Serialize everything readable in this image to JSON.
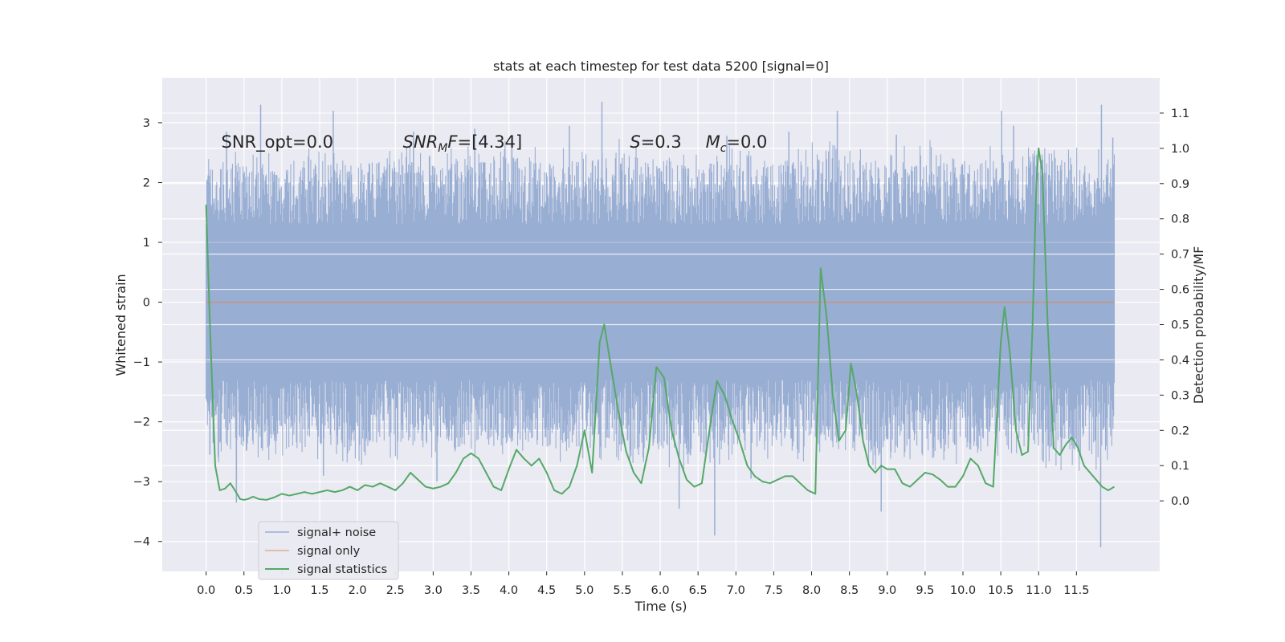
{
  "chart_data": {
    "type": "line",
    "title": "stats at each timestep for test data 5200 [signal=0]",
    "xlabel": "Time (s)",
    "ylabel_left": "Whitened strain",
    "ylabel_right": "Detection probability/MF",
    "xlim": [
      -0.58,
      12.6
    ],
    "ylim_left": [
      -4.5,
      3.75
    ],
    "ylim_right": [
      -0.2,
      1.2
    ],
    "x_ticks": [
      0.0,
      0.5,
      1.0,
      1.5,
      2.0,
      2.5,
      3.0,
      3.5,
      4.0,
      4.5,
      5.0,
      5.5,
      6.0,
      6.5,
      7.0,
      7.5,
      8.0,
      8.5,
      9.0,
      9.5,
      10.0,
      10.5,
      11.0,
      11.5
    ],
    "x_tick_labels": [
      "0.0",
      "0.5",
      "1.0",
      "1.5",
      "2.0",
      "2.5",
      "3.0",
      "3.5",
      "4.0",
      "4.5",
      "5.0",
      "5.5",
      "6.0",
      "6.5",
      "7.0",
      "7.5",
      "8.0",
      "8.5",
      "9.0",
      "9.5",
      "10.0",
      "10.5",
      "11.0",
      "11.5"
    ],
    "y_left_ticks": [
      3,
      2,
      1,
      0,
      -1,
      -2,
      -3,
      -4
    ],
    "y_left_tick_labels": [
      "3",
      "2",
      "1",
      "0",
      "−1",
      "−2",
      "−3",
      "−4"
    ],
    "y_right_ticks": [
      1.1,
      1.0,
      0.9,
      0.8,
      0.7,
      0.6,
      0.5,
      0.4,
      0.3,
      0.2,
      0.1,
      0.0
    ],
    "y_right_tick_labels": [
      "1.1",
      "1.0",
      "0.9",
      "0.8",
      "0.7",
      "0.6",
      "0.5",
      "0.4",
      "0.3",
      "0.2",
      "0.1",
      "0.0"
    ],
    "grid": true,
    "legend_position": "lower-left",
    "annotations": [
      {
        "text": "SNR_opt=0.0",
        "x": 0.2,
        "y": 2.68
      },
      {
        "text": "SNR_MF=[4.34]",
        "x": 2.6,
        "y": 2.68
      },
      {
        "text": "S=0.3",
        "x": 5.6,
        "y": 2.68
      },
      {
        "text": "M_c=0.0",
        "x": 6.6,
        "y": 2.68
      }
    ],
    "annotation_parts": [
      [
        {
          "t": "SNR_opt=0.0"
        }
      ],
      [
        {
          "t": "SNR",
          "i": 1
        },
        {
          "t": "M",
          "i": 1,
          "sub": 1
        },
        {
          "t": "F",
          "i": 1
        },
        {
          "t": "=[4.34]"
        }
      ],
      [
        {
          "t": "S",
          "i": 1
        },
        {
          "t": "=0.3"
        }
      ],
      [
        {
          "t": "M",
          "i": 1
        },
        {
          "t": "c",
          "i": 1,
          "sub": 1
        },
        {
          "t": "=0.0"
        }
      ]
    ],
    "series": [
      {
        "name": "signal+ noise",
        "color": "#99aed3",
        "axis": "left",
        "x_range": [
          0.0,
          12.0
        ],
        "envelope_x": [
          0.0,
          0.5,
          1.0,
          1.5,
          2.0,
          2.5,
          3.0,
          3.5,
          4.0,
          4.5,
          5.0,
          5.5,
          6.0,
          6.5,
          7.0,
          7.5,
          8.0,
          8.5,
          9.0,
          9.5,
          10.0,
          10.5,
          11.0,
          11.5,
          12.0
        ],
        "envelope_upper": [
          2.3,
          2.4,
          2.3,
          2.4,
          2.3,
          2.4,
          2.3,
          2.4,
          2.5,
          2.3,
          2.4,
          2.5,
          2.4,
          2.3,
          2.4,
          2.3,
          2.5,
          2.4,
          2.3,
          2.5,
          2.4,
          2.4,
          2.5,
          2.4,
          2.3
        ],
        "envelope_lower": [
          -2.4,
          -2.5,
          -2.5,
          -2.4,
          -2.5,
          -2.4,
          -2.5,
          -2.4,
          -2.5,
          -2.5,
          -2.4,
          -2.5,
          -2.5,
          -2.6,
          -2.4,
          -2.5,
          -2.4,
          -2.5,
          -2.6,
          -2.5,
          -2.5,
          -2.4,
          -2.5,
          -2.6,
          -2.5
        ],
        "peaks": [
          {
            "x": 0.02,
            "y": 1.65
          },
          {
            "x": 0.27,
            "y": 2.85
          },
          {
            "x": 0.72,
            "y": 3.3
          },
          {
            "x": 1.68,
            "y": 3.2
          },
          {
            "x": 2.74,
            "y": 2.85
          },
          {
            "x": 3.55,
            "y": 2.9
          },
          {
            "x": 4.04,
            "y": 2.8
          },
          {
            "x": 4.8,
            "y": 2.95
          },
          {
            "x": 5.23,
            "y": 3.35
          },
          {
            "x": 6.88,
            "y": 2.78
          },
          {
            "x": 7.7,
            "y": 2.85
          },
          {
            "x": 8.34,
            "y": 3.2
          },
          {
            "x": 9.12,
            "y": 2.8
          },
          {
            "x": 10.51,
            "y": 3.2
          },
          {
            "x": 10.67,
            "y": 2.95
          },
          {
            "x": 11.83,
            "y": 3.3
          },
          {
            "x": 11.98,
            "y": 2.75
          }
        ],
        "troughs": [
          {
            "x": 0.05,
            "y": -2.55
          },
          {
            "x": 0.4,
            "y": -3.35
          },
          {
            "x": 1.55,
            "y": -2.9
          },
          {
            "x": 3.05,
            "y": -3.0
          },
          {
            "x": 6.25,
            "y": -3.45
          },
          {
            "x": 6.72,
            "y": -3.9
          },
          {
            "x": 7.2,
            "y": -2.95
          },
          {
            "x": 8.92,
            "y": -3.5
          },
          {
            "x": 11.82,
            "y": -4.1
          },
          {
            "x": 11.97,
            "y": -1.72
          }
        ]
      },
      {
        "name": "signal only",
        "color": "#dd8452",
        "axis": "left",
        "x": [
          0.0,
          12.0
        ],
        "y": [
          0.0,
          0.0
        ]
      },
      {
        "name": "signal statistics",
        "color": "#55a868",
        "axis": "right",
        "x": [
          0.0,
          0.05,
          0.12,
          0.18,
          0.25,
          0.32,
          0.38,
          0.45,
          0.5,
          0.55,
          0.62,
          0.7,
          0.8,
          0.9,
          1.0,
          1.1,
          1.2,
          1.3,
          1.4,
          1.5,
          1.6,
          1.7,
          1.8,
          1.9,
          2.0,
          2.1,
          2.2,
          2.3,
          2.4,
          2.5,
          2.6,
          2.7,
          2.8,
          2.9,
          3.0,
          3.1,
          3.2,
          3.3,
          3.4,
          3.5,
          3.6,
          3.7,
          3.8,
          3.9,
          4.0,
          4.1,
          4.2,
          4.3,
          4.4,
          4.5,
          4.6,
          4.7,
          4.8,
          4.9,
          5.0,
          5.1,
          5.2,
          5.26,
          5.35,
          5.45,
          5.55,
          5.65,
          5.75,
          5.85,
          5.95,
          6.05,
          6.15,
          6.25,
          6.35,
          6.45,
          6.55,
          6.65,
          6.75,
          6.85,
          6.95,
          7.05,
          7.15,
          7.25,
          7.35,
          7.45,
          7.55,
          7.65,
          7.75,
          7.85,
          7.95,
          8.05,
          8.12,
          8.2,
          8.28,
          8.36,
          8.45,
          8.52,
          8.6,
          8.68,
          8.76,
          8.84,
          8.92,
          9.0,
          9.1,
          9.2,
          9.3,
          9.4,
          9.5,
          9.6,
          9.7,
          9.8,
          9.9,
          10.0,
          10.1,
          10.2,
          10.3,
          10.4,
          10.5,
          10.55,
          10.62,
          10.7,
          10.78,
          10.86,
          10.92,
          10.97,
          11.0,
          11.05,
          11.12,
          11.2,
          11.28,
          11.36,
          11.44,
          11.52,
          11.6,
          11.68,
          11.76,
          11.84,
          11.92,
          12.0
        ],
        "y": [
          0.84,
          0.5,
          0.1,
          0.03,
          0.035,
          0.05,
          0.03,
          0.005,
          0.003,
          0.005,
          0.012,
          0.005,
          0.003,
          0.01,
          0.02,
          0.015,
          0.02,
          0.025,
          0.02,
          0.025,
          0.03,
          0.025,
          0.03,
          0.04,
          0.03,
          0.045,
          0.04,
          0.05,
          0.04,
          0.03,
          0.05,
          0.08,
          0.06,
          0.04,
          0.035,
          0.04,
          0.05,
          0.08,
          0.12,
          0.135,
          0.12,
          0.08,
          0.04,
          0.03,
          0.09,
          0.145,
          0.12,
          0.1,
          0.12,
          0.08,
          0.03,
          0.02,
          0.04,
          0.1,
          0.2,
          0.08,
          0.45,
          0.5,
          0.38,
          0.25,
          0.14,
          0.08,
          0.05,
          0.15,
          0.38,
          0.35,
          0.2,
          0.12,
          0.06,
          0.04,
          0.05,
          0.2,
          0.34,
          0.3,
          0.23,
          0.17,
          0.1,
          0.07,
          0.055,
          0.05,
          0.06,
          0.07,
          0.07,
          0.05,
          0.03,
          0.02,
          0.66,
          0.52,
          0.3,
          0.17,
          0.2,
          0.39,
          0.3,
          0.17,
          0.1,
          0.08,
          0.1,
          0.09,
          0.09,
          0.05,
          0.04,
          0.06,
          0.08,
          0.075,
          0.06,
          0.04,
          0.04,
          0.07,
          0.12,
          0.1,
          0.05,
          0.04,
          0.45,
          0.55,
          0.42,
          0.2,
          0.13,
          0.14,
          0.5,
          0.9,
          1.0,
          0.93,
          0.5,
          0.15,
          0.13,
          0.16,
          0.18,
          0.15,
          0.1,
          0.08,
          0.06,
          0.04,
          0.03,
          0.04
        ]
      }
    ]
  }
}
